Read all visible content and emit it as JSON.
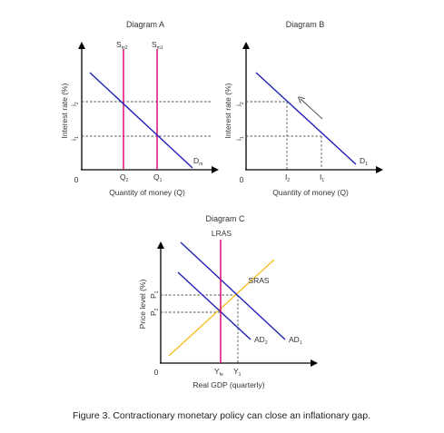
{
  "diagram_a": {
    "title": "Diagram A",
    "y_axis_label": "Interest rate (%)",
    "x_axis_label": "Quantity of money (Q)",
    "origin": "0",
    "supply_2": {
      "main": "S",
      "sub": "m2"
    },
    "supply_1": {
      "main": "S",
      "sub": "m1"
    },
    "demand": {
      "main": "D",
      "sub": "m"
    },
    "rate_2": {
      "main": "i",
      "sub": "2"
    },
    "rate_1": {
      "main": "i",
      "sub": "1"
    },
    "qty_2": {
      "main": "Q",
      "sub": "2"
    },
    "qty_1": {
      "main": "Q",
      "sub": "1"
    }
  },
  "diagram_b": {
    "title": "Diagram B",
    "y_axis_label": "Interest rate (%)",
    "x_axis_label": "Quantity of money (Q)",
    "origin": "0",
    "demand": {
      "main": "D",
      "sub": "1"
    },
    "rate_2": {
      "main": "i",
      "sub": "2"
    },
    "rate_1": {
      "main": "i",
      "sub": "1"
    },
    "qty_2": {
      "main": "I",
      "sub": "2"
    },
    "qty_1": {
      "main": "I",
      "sub": "1"
    }
  },
  "diagram_c": {
    "title": "Diagram C",
    "lras": "LRAS",
    "sras": "SRAS",
    "y_axis_label": "Price level (%)",
    "x_axis_label": "Real GDP (quarterly)",
    "origin": "0",
    "price_1": {
      "main": "P",
      "sub": "1"
    },
    "price_2": {
      "main": "P",
      "sub": "2"
    },
    "ad_2": {
      "main": "AD",
      "sub": "2"
    },
    "ad_1": {
      "main": "AD",
      "sub": "1"
    },
    "y_fe": {
      "main": "Y",
      "sub": "fe"
    },
    "y_1": {
      "main": "Y",
      "sub": "1"
    }
  },
  "caption": "Figure 3. Contractionary monetary policy can close an inflationary gap.",
  "colors": {
    "demand_curves": "#1f1fb5",
    "vertical_supply": "#d6006f",
    "sras": "#f5c023",
    "axes": "#000000"
  }
}
